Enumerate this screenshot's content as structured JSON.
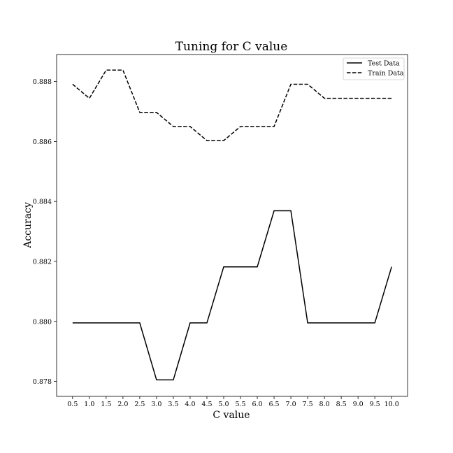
{
  "chart_data": {
    "type": "line",
    "title": "Tuning for C value",
    "xlabel": "C value",
    "ylabel": "Accuracy",
    "x": [
      0.5,
      1.0,
      1.5,
      2.0,
      2.5,
      3.0,
      3.5,
      4.0,
      4.5,
      5.0,
      5.5,
      6.0,
      6.5,
      7.0,
      7.5,
      8.0,
      8.5,
      9.0,
      9.5,
      10.0
    ],
    "x_tick_labels": [
      "0.5",
      "1.0",
      "1.5",
      "2.0",
      "2.5",
      "3.0",
      "3.5",
      "4.0",
      "4.5",
      "5.0",
      "5.5",
      "6.0",
      "6.5",
      "7.0",
      "7.5",
      "8.0",
      "8.5",
      "9.0",
      "9.5",
      "10.0"
    ],
    "y_ticks": [
      0.878,
      0.88,
      0.882,
      0.884,
      0.886,
      0.888
    ],
    "y_tick_labels": [
      "0.878",
      "0.880",
      "0.882",
      "0.884",
      "0.886",
      "0.888"
    ],
    "xlim": [
      0.025,
      10.475
    ],
    "ylim": [
      0.8775,
      0.8889
    ],
    "grid": false,
    "legend_position": "top-right",
    "series": [
      {
        "name": "Test Data",
        "style": "solid",
        "color": "#000000",
        "values": [
          0.87995,
          0.87995,
          0.87995,
          0.87995,
          0.87995,
          0.87805,
          0.87805,
          0.87995,
          0.87995,
          0.88182,
          0.88182,
          0.88182,
          0.88369,
          0.88369,
          0.87995,
          0.87995,
          0.87995,
          0.87995,
          0.87995,
          0.88182
        ]
      },
      {
        "name": "Train Data",
        "style": "dashed",
        "color": "#000000",
        "values": [
          0.88791,
          0.88744,
          0.88838,
          0.88838,
          0.88697,
          0.88697,
          0.8865,
          0.8865,
          0.88603,
          0.88603,
          0.8865,
          0.8865,
          0.8865,
          0.88791,
          0.88791,
          0.88744,
          0.88744,
          0.88744,
          0.88744,
          0.88744
        ]
      }
    ]
  }
}
